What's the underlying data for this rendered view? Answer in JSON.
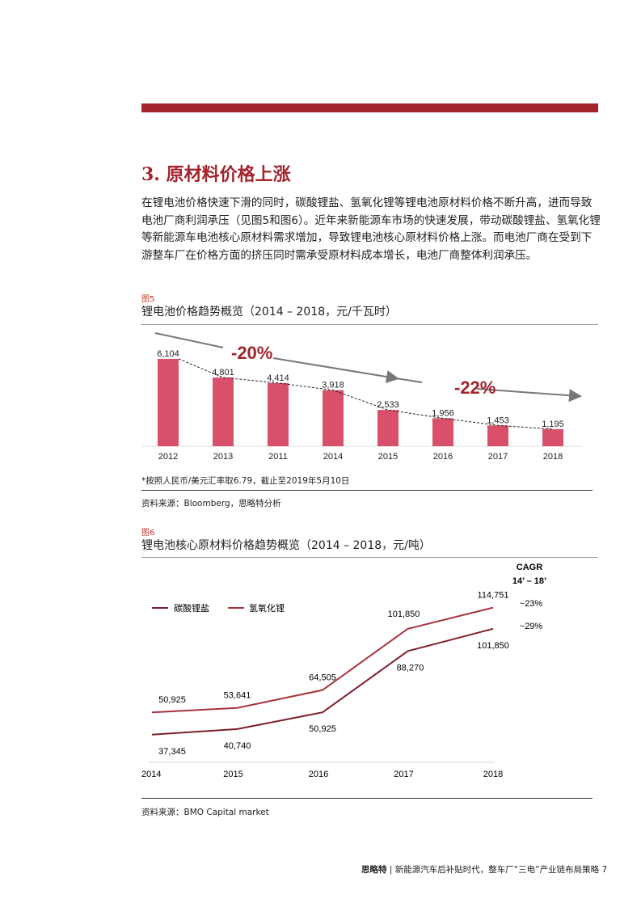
{
  "section": {
    "title": "3. 原材料价格上涨",
    "paragraph": "在锂电池价格快速下滑的同时，碳酸锂盐、氢氧化锂等锂电池原材料价格不断升高，进而导致电池厂商利润承压（见图5和图6）。近年来新能源车市场的快速发展，带动碳酸锂盐、氢氧化锂等新能源车电池核心原材料需求增加，导致锂电池核心原材料价格上涨。而电池厂商在受到下游整车厂在价格方面的挤压同时需承受原材料成本增长，电池厂商整体利润承压。"
  },
  "figure5": {
    "label": "图5",
    "title": "锂电池价格趋势概览（2014 – 2018，元/千瓦时）",
    "footnote": "*按照人民币/美元汇率取6.79，截止至2019年5月10日",
    "source": "资料来源：Bloomberg，思略特分析"
  },
  "figure6": {
    "label": "图6",
    "title": "锂电池核心原材料价格趋势概览（2014 – 2018，元/吨）",
    "source": "资料来源：BMO Capital market"
  },
  "chart_data": [
    {
      "type": "bar",
      "categories": [
        "2012",
        "2013",
        "2011",
        "2014",
        "2015",
        "2016",
        "2017",
        "2018"
      ],
      "values": [
        6104,
        4801,
        4414,
        3918,
        2533,
        1956,
        1453,
        1195
      ],
      "value_labels": [
        "6,104",
        "4,801",
        "4,414",
        "3,918",
        "2,533",
        "1,956",
        "1,453",
        "1,195"
      ],
      "annotations": [
        "-20%",
        "-22%"
      ],
      "ylim": [
        0,
        6500
      ],
      "grid": false,
      "colors": {
        "bar": "#d9506a",
        "annotation": "#a3242c",
        "arrow": "#777777"
      }
    },
    {
      "type": "line",
      "categories": [
        "2014",
        "2015",
        "2016",
        "2017",
        "2018"
      ],
      "series": [
        {
          "name": "碳酸锂盐",
          "values": [
            37345,
            40740,
            50925,
            88270,
            101850
          ],
          "labels": [
            "37,345",
            "40,740",
            "50,925",
            "88,270",
            "101,850"
          ],
          "color": "#7e1f2a"
        },
        {
          "name": "氢氧化锂",
          "values": [
            50925,
            53641,
            64505,
            101850,
            114751
          ],
          "labels": [
            "50,925",
            "53,641",
            "64,505",
            "101,850",
            "114,751"
          ],
          "color": "#a8343c"
        }
      ],
      "cagr_title": [
        "CAGR",
        "14’ – 18’"
      ],
      "cagr_values": [
        "~23%",
        "~29%"
      ],
      "ylim": [
        20000,
        140000
      ],
      "grid": false,
      "legend": "top-left"
    }
  ],
  "footer": {
    "brand": "思略特",
    "text": "| 新能源汽车后补贴时代，整车厂“三电”产业链布局策略",
    "page": "7"
  }
}
